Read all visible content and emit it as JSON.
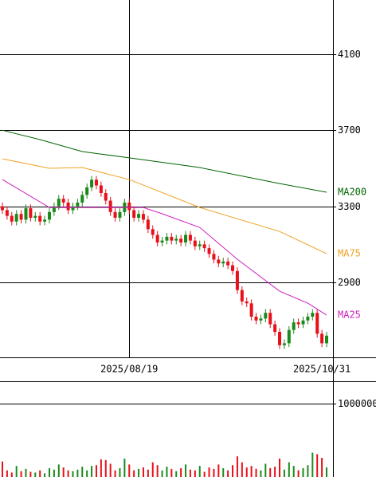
{
  "chart_data": [
    {
      "type": "candlestick",
      "categories": [
        null,
        null,
        null,
        null,
        null,
        null,
        null,
        null,
        null,
        null,
        null,
        null,
        null,
        null,
        null,
        null,
        null,
        null,
        null,
        null,
        null,
        null,
        null,
        null,
        null,
        null,
        null,
        "2025/08/19",
        null,
        null,
        null,
        null,
        null,
        null,
        null,
        null,
        null,
        null,
        null,
        null,
        null,
        null,
        null,
        null,
        null,
        null,
        null,
        null,
        null,
        null,
        null,
        null,
        null,
        null,
        null,
        null,
        null,
        null,
        null,
        null,
        null,
        null,
        null,
        null,
        null,
        null,
        null,
        null,
        "2025/10/31",
        null
      ],
      "open": [
        3300,
        3280,
        3250,
        3220,
        3260,
        3230,
        3290,
        3240,
        3250,
        3220,
        3230,
        3270,
        3300,
        3340,
        3320,
        3280,
        3300,
        3320,
        3360,
        3400,
        3440,
        3410,
        3370,
        3330,
        3270,
        3240,
        3270,
        3320,
        3280,
        3240,
        3260,
        3230,
        3180,
        3150,
        3110,
        3120,
        3140,
        3120,
        3130,
        3110,
        3150,
        3120,
        3090,
        3100,
        3080,
        3050,
        3020,
        3000,
        3010,
        2990,
        2960,
        2860,
        2800,
        2790,
        2720,
        2700,
        2710,
        2740,
        2680,
        2640,
        2570,
        2580,
        2650,
        2690,
        2680,
        2700,
        2720,
        2740,
        2630,
        2580
      ],
      "high": [
        3320,
        3300,
        3270,
        3280,
        3280,
        3310,
        3310,
        3270,
        3270,
        3250,
        3290,
        3320,
        3360,
        3360,
        3340,
        3320,
        3340,
        3380,
        3420,
        3460,
        3460,
        3430,
        3390,
        3350,
        3290,
        3290,
        3340,
        3340,
        3300,
        3280,
        3280,
        3250,
        3200,
        3170,
        3140,
        3160,
        3160,
        3150,
        3150,
        3170,
        3170,
        3140,
        3120,
        3120,
        3100,
        3070,
        3040,
        3030,
        3030,
        3010,
        2980,
        2880,
        2820,
        2810,
        2740,
        2730,
        2760,
        2760,
        2700,
        2660,
        2600,
        2670,
        2710,
        2710,
        2720,
        2740,
        2760,
        2760,
        2650,
        2640
      ],
      "low": [
        3260,
        3230,
        3200,
        3200,
        3210,
        3210,
        3220,
        3220,
        3200,
        3200,
        3210,
        3250,
        3280,
        3300,
        3260,
        3260,
        3280,
        3300,
        3340,
        3380,
        3390,
        3350,
        3310,
        3250,
        3220,
        3220,
        3250,
        3260,
        3220,
        3220,
        3210,
        3160,
        3130,
        3090,
        3090,
        3100,
        3100,
        3100,
        3090,
        3090,
        3100,
        3070,
        3070,
        3060,
        3030,
        3000,
        2980,
        2980,
        2970,
        2940,
        2840,
        2780,
        2770,
        2700,
        2680,
        2680,
        2690,
        2660,
        2620,
        2550,
        2550,
        2560,
        2630,
        2660,
        2660,
        2680,
        2700,
        2610,
        2560,
        2560
      ],
      "close": [
        3280,
        3250,
        3220,
        3260,
        3230,
        3290,
        3240,
        3250,
        3220,
        3230,
        3270,
        3300,
        3340,
        3320,
        3280,
        3300,
        3320,
        3360,
        3400,
        3440,
        3410,
        3370,
        3330,
        3270,
        3240,
        3270,
        3320,
        3280,
        3240,
        3260,
        3230,
        3180,
        3150,
        3110,
        3120,
        3140,
        3120,
        3130,
        3110,
        3150,
        3120,
        3090,
        3100,
        3080,
        3050,
        3020,
        3000,
        3010,
        2990,
        2960,
        2860,
        2800,
        2790,
        2720,
        2700,
        2710,
        2740,
        2680,
        2640,
        2570,
        2580,
        2650,
        2690,
        2680,
        2700,
        2720,
        2740,
        2630,
        2580,
        2620
      ],
      "up_color": "#1a8a1a",
      "down_color": "#e8101a",
      "series": [
        {
          "name": "MA200",
          "color": "#006400",
          "x": [
            0,
            8,
            17,
            27,
            42,
            59,
            69
          ],
          "values": [
            3700,
            3651,
            3588,
            3555,
            3504,
            3420,
            3374
          ]
        },
        {
          "name": "MA75",
          "color": "#f0a020",
          "x": [
            0,
            10,
            17,
            27,
            42,
            59,
            69
          ],
          "values": [
            3550,
            3500,
            3504,
            3441,
            3294,
            3168,
            3051
          ]
        },
        {
          "name": "MA25",
          "color": "#d020c0",
          "x": [
            0,
            10,
            22,
            30,
            34,
            42,
            50,
            59,
            65,
            69
          ],
          "values": [
            3441,
            3294,
            3294,
            3294,
            3261,
            3189,
            3022,
            2854,
            2791,
            2728
          ]
        }
      ],
      "ylim": [
        2506,
        4385
      ],
      "yticks": [
        2900,
        3300,
        3700,
        4100
      ],
      "grid": true
    },
    {
      "type": "bar",
      "values": [
        210000,
        90000,
        60000,
        150000,
        80000,
        110000,
        70000,
        60000,
        90000,
        50000,
        120000,
        100000,
        170000,
        130000,
        90000,
        80000,
        100000,
        140000,
        90000,
        150000,
        160000,
        240000,
        230000,
        180000,
        90000,
        120000,
        250000,
        170000,
        90000,
        110000,
        130000,
        100000,
        200000,
        160000,
        90000,
        140000,
        110000,
        80000,
        120000,
        170000,
        100000,
        90000,
        150000,
        70000,
        130000,
        110000,
        170000,
        120000,
        90000,
        160000,
        280000,
        200000,
        130000,
        150000,
        110000,
        90000,
        180000,
        120000,
        140000,
        250000,
        100000,
        200000,
        150000,
        90000,
        120000,
        160000,
        330000,
        310000,
        260000,
        130000
      ],
      "ylim": [
        0,
        1300000
      ],
      "yticks": [
        1000000
      ],
      "grid": true
    }
  ]
}
